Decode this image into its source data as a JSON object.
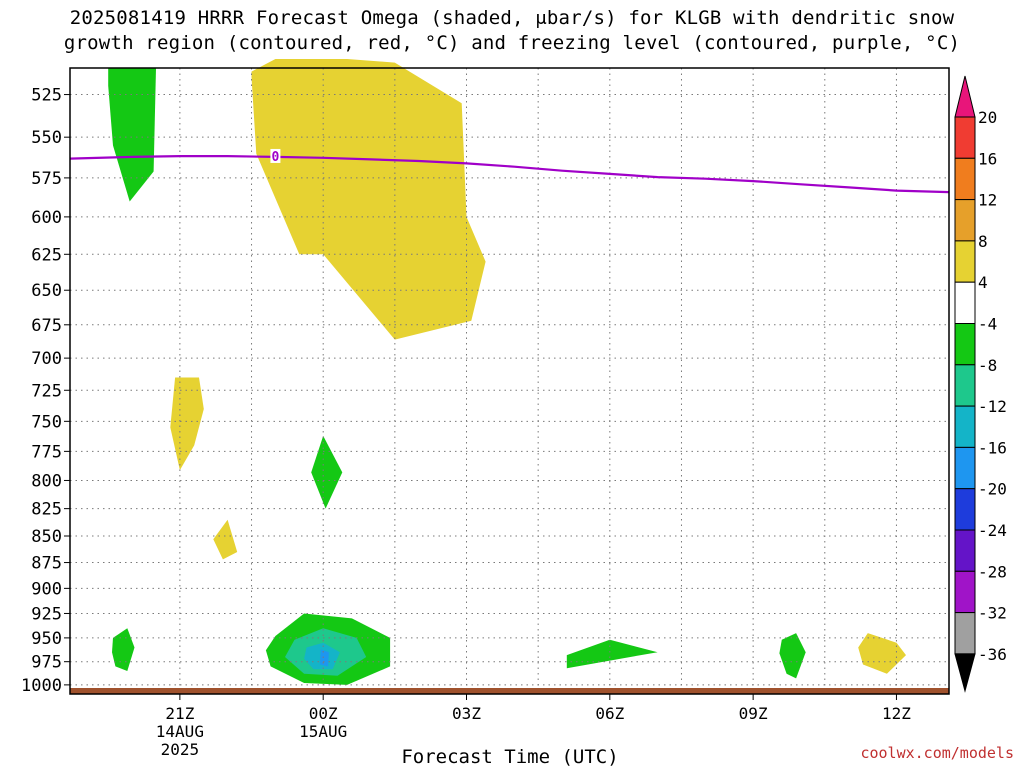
{
  "title": {
    "line1": "2025081419 HRRR Forecast Omega (shaded, μbar/s) for KLGB with dendritic snow",
    "line2": "growth region (contoured, red, °C) and freezing level (contoured, purple, °C)"
  },
  "credit": "coolwx.com/models",
  "colors": {
    "freezing_level": "#a000c8",
    "ground": "#a0522d",
    "grid": "#7a7a7a"
  },
  "chart_data": {
    "type": "heatmap",
    "title": "2025081419 HRRR Forecast Omega (shaded, μbar/s) for KLGB with dendritic snow growth region (contoured, red, °C) and freezing level (contoured, purple, °C)",
    "xlabel": "Forecast Time (UTC)",
    "ylabel": "",
    "x_unit": "hours since 2025-08-14 19Z",
    "xlim": [
      -0.3,
      18.1
    ],
    "ylim": [
      1010,
      510
    ],
    "y_scale": "log-pressure (inverted)",
    "grid": true,
    "x_ticks": [
      {
        "x": 2,
        "label": "21Z",
        "sub1": "14AUG",
        "sub2": "2025"
      },
      {
        "x": 5,
        "label": "00Z",
        "sub1": "15AUG",
        "sub2": ""
      },
      {
        "x": 8,
        "label": "03Z",
        "sub1": "",
        "sub2": ""
      },
      {
        "x": 11,
        "label": "06Z",
        "sub1": "",
        "sub2": ""
      },
      {
        "x": 14,
        "label": "09Z",
        "sub1": "",
        "sub2": ""
      },
      {
        "x": 17,
        "label": "12Z",
        "sub1": "",
        "sub2": ""
      }
    ],
    "x_minor_grid": [
      3.5,
      6.5,
      9.5,
      12.5,
      15.5
    ],
    "y_ticks": [
      525,
      550,
      575,
      600,
      625,
      650,
      675,
      700,
      725,
      750,
      775,
      800,
      825,
      850,
      875,
      900,
      925,
      950,
      975,
      1000
    ],
    "colorbar": {
      "label_values": [
        "20",
        "16",
        "12",
        "8",
        "4",
        "-4",
        "-8",
        "-12",
        "-16",
        "-20",
        "-24",
        "-28",
        "-32",
        "-36"
      ],
      "bins": [
        {
          "lo": 20,
          "hi": null,
          "color": "#e8157a"
        },
        {
          "lo": 16,
          "hi": 20,
          "color": "#f03c32"
        },
        {
          "lo": 12,
          "hi": 16,
          "color": "#f07d1e"
        },
        {
          "lo": 8,
          "hi": 12,
          "color": "#e6a02a"
        },
        {
          "lo": 4,
          "hi": 8,
          "color": "#e6d232"
        },
        {
          "lo": -4,
          "hi": 4,
          "color": "#ffffff"
        },
        {
          "lo": -8,
          "hi": -4,
          "color": "#14c814"
        },
        {
          "lo": -12,
          "hi": -8,
          "color": "#1ec88c"
        },
        {
          "lo": -16,
          "hi": -12,
          "color": "#14b4c8"
        },
        {
          "lo": -20,
          "hi": -16,
          "color": "#1e96f0"
        },
        {
          "lo": -24,
          "hi": -20,
          "color": "#1e3cdc"
        },
        {
          "lo": -28,
          "hi": -24,
          "color": "#6414c8"
        },
        {
          "lo": -32,
          "hi": -28,
          "color": "#a014c8"
        },
        {
          "lo": -36,
          "hi": -32,
          "color": "#a0a0a0"
        },
        {
          "lo": null,
          "hi": -36,
          "color": "#000000"
        }
      ]
    },
    "omega_regions": [
      {
        "bin": "-8 to -4",
        "color": "#14c814",
        "points": [
          [
            0.5,
            510
          ],
          [
            1.5,
            510
          ],
          [
            1.45,
            571
          ],
          [
            0.95,
            590
          ],
          [
            0.6,
            555
          ],
          [
            0.5,
            520
          ]
        ]
      },
      {
        "bin": "4 to 8",
        "color": "#e6d232",
        "points": [
          [
            3.5,
            512
          ],
          [
            4.0,
            505
          ],
          [
            5.5,
            505
          ],
          [
            6.5,
            507
          ],
          [
            7.9,
            530
          ],
          [
            8.0,
            600
          ],
          [
            8.4,
            630
          ],
          [
            8.1,
            672
          ],
          [
            6.5,
            686
          ],
          [
            5.0,
            625
          ],
          [
            4.5,
            625
          ],
          [
            3.6,
            560
          ],
          [
            3.5,
            515
          ]
        ]
      },
      {
        "bin": "4 to 8",
        "color": "#e6d232",
        "points": [
          [
            1.9,
            715
          ],
          [
            2.4,
            715
          ],
          [
            2.5,
            740
          ],
          [
            2.3,
            770
          ],
          [
            2.0,
            791
          ],
          [
            1.8,
            755
          ]
        ]
      },
      {
        "bin": "-8 to -4",
        "color": "#14c814",
        "points": [
          [
            5.0,
            762
          ],
          [
            5.4,
            793
          ],
          [
            5.05,
            825
          ],
          [
            4.75,
            793
          ]
        ]
      },
      {
        "bin": "4 to 8",
        "color": "#e6d232",
        "points": [
          [
            3.0,
            835
          ],
          [
            3.2,
            865
          ],
          [
            2.9,
            872
          ],
          [
            2.7,
            853
          ]
        ]
      },
      {
        "bin": "-8 to -4",
        "color": "#14c814",
        "points": [
          [
            0.6,
            950
          ],
          [
            0.9,
            940
          ],
          [
            1.05,
            960
          ],
          [
            0.9,
            985
          ],
          [
            0.65,
            980
          ],
          [
            0.58,
            965
          ]
        ]
      },
      {
        "bin": "-8 to -4",
        "color": "#14c814",
        "points": [
          [
            4.0,
            948
          ],
          [
            4.6,
            925
          ],
          [
            5.6,
            930
          ],
          [
            6.4,
            950
          ],
          [
            6.4,
            980
          ],
          [
            5.5,
            1000
          ],
          [
            4.6,
            998
          ],
          [
            3.9,
            980
          ],
          [
            3.8,
            963
          ]
        ]
      },
      {
        "bin": "-12 to -8",
        "color": "#1ec88c",
        "points": [
          [
            4.4,
            952
          ],
          [
            5.0,
            940
          ],
          [
            5.7,
            950
          ],
          [
            5.9,
            970
          ],
          [
            5.3,
            990
          ],
          [
            4.6,
            988
          ],
          [
            4.2,
            970
          ]
        ]
      },
      {
        "bin": "-16 to -12",
        "color": "#14b4c8",
        "points": [
          [
            4.65,
            960
          ],
          [
            5.0,
            955
          ],
          [
            5.35,
            965
          ],
          [
            5.2,
            983
          ],
          [
            4.8,
            983
          ],
          [
            4.6,
            972
          ]
        ]
      },
      {
        "bin": "-20 to -16",
        "color": "#1e96f0",
        "points": [
          [
            4.95,
            962
          ],
          [
            5.12,
            965
          ],
          [
            5.1,
            980
          ],
          [
            4.93,
            978
          ]
        ]
      },
      {
        "bin": "-8 to -4",
        "color": "#14c814",
        "points": [
          [
            10.1,
            968
          ],
          [
            11.0,
            952
          ],
          [
            12.0,
            965
          ],
          [
            10.1,
            982
          ]
        ]
      },
      {
        "bin": "-8 to -4",
        "color": "#14c814",
        "points": [
          [
            14.6,
            952
          ],
          [
            14.9,
            945
          ],
          [
            15.1,
            965
          ],
          [
            14.9,
            993
          ],
          [
            14.7,
            988
          ],
          [
            14.55,
            966
          ]
        ]
      },
      {
        "bin": "4 to 8",
        "color": "#e6d232",
        "points": [
          [
            16.4,
            945
          ],
          [
            17.0,
            955
          ],
          [
            17.2,
            968
          ],
          [
            16.8,
            988
          ],
          [
            16.3,
            978
          ],
          [
            16.2,
            960
          ]
        ]
      }
    ],
    "series": [
      {
        "name": "0",
        "color": "#a000c8",
        "points": [
          [
            -0.3,
            563
          ],
          [
            1,
            562
          ],
          [
            2,
            561.5
          ],
          [
            3,
            561.5
          ],
          [
            4,
            562
          ],
          [
            5,
            562.5
          ],
          [
            6,
            563.5
          ],
          [
            7,
            564.5
          ],
          [
            8,
            566
          ],
          [
            9,
            568
          ],
          [
            10,
            570.5
          ],
          [
            11,
            572.5
          ],
          [
            12,
            574.5
          ],
          [
            13,
            575.5
          ],
          [
            14,
            577
          ],
          [
            15,
            579
          ],
          [
            16,
            581
          ],
          [
            17,
            583
          ],
          [
            18.1,
            584
          ]
        ],
        "contour_label": {
          "x": 4.0,
          "value": "0"
        }
      }
    ]
  }
}
